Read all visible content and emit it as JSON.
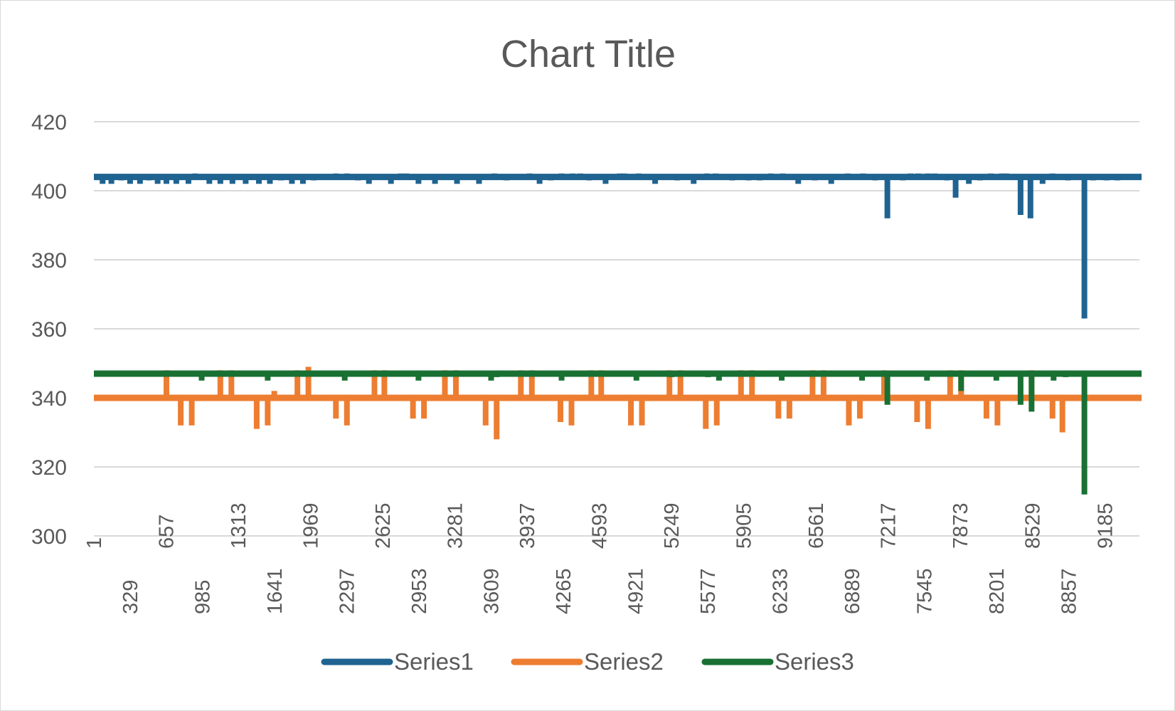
{
  "chart_data": {
    "type": "line",
    "title": "Chart Title",
    "xlabel": "",
    "ylabel": "",
    "ylim": [
      300,
      420
    ],
    "yticks": [
      300,
      320,
      340,
      360,
      380,
      400,
      420
    ],
    "x_range": [
      1,
      9500
    ],
    "xticks": [
      "1",
      "329",
      "657",
      "985",
      "1313",
      "1641",
      "1969",
      "2297",
      "2625",
      "2953",
      "3281",
      "3609",
      "3937",
      "4265",
      "4593",
      "4921",
      "5249",
      "5577",
      "5905",
      "6233",
      "6561",
      "6889",
      "7217",
      "7545",
      "7873",
      "8201",
      "8529",
      "8857",
      "9185"
    ],
    "grid": true,
    "legend": "bottom",
    "series": [
      {
        "name": "Series1",
        "color": "#1f6391",
        "baseline": 404,
        "spikes": [
          {
            "x": 80,
            "y": 402
          },
          {
            "x": 160,
            "y": 402
          },
          {
            "x": 250,
            "y": 403
          },
          {
            "x": 330,
            "y": 402
          },
          {
            "x": 420,
            "y": 402
          },
          {
            "x": 500,
            "y": 403
          },
          {
            "x": 580,
            "y": 402
          },
          {
            "x": 660,
            "y": 402
          },
          {
            "x": 750,
            "y": 402
          },
          {
            "x": 860,
            "y": 402
          },
          {
            "x": 920,
            "y": 405
          },
          {
            "x": 1050,
            "y": 402
          },
          {
            "x": 1150,
            "y": 402
          },
          {
            "x": 1260,
            "y": 402
          },
          {
            "x": 1380,
            "y": 402
          },
          {
            "x": 1500,
            "y": 402
          },
          {
            "x": 1600,
            "y": 402
          },
          {
            "x": 1700,
            "y": 403
          },
          {
            "x": 1800,
            "y": 402
          },
          {
            "x": 1900,
            "y": 402
          },
          {
            "x": 2000,
            "y": 403
          },
          {
            "x": 2200,
            "y": 405
          },
          {
            "x": 2300,
            "y": 405
          },
          {
            "x": 2400,
            "y": 403
          },
          {
            "x": 2500,
            "y": 402
          },
          {
            "x": 2700,
            "y": 402
          },
          {
            "x": 2790,
            "y": 405
          },
          {
            "x": 2840,
            "y": 405
          },
          {
            "x": 2950,
            "y": 402
          },
          {
            "x": 3100,
            "y": 402
          },
          {
            "x": 3300,
            "y": 402
          },
          {
            "x": 3500,
            "y": 402
          },
          {
            "x": 3640,
            "y": 405
          },
          {
            "x": 3750,
            "y": 403
          },
          {
            "x": 3960,
            "y": 405
          },
          {
            "x": 4050,
            "y": 402
          },
          {
            "x": 4150,
            "y": 403
          },
          {
            "x": 4250,
            "y": 405
          },
          {
            "x": 4350,
            "y": 405
          },
          {
            "x": 4420,
            "y": 405
          },
          {
            "x": 4500,
            "y": 403
          },
          {
            "x": 4650,
            "y": 402
          },
          {
            "x": 4780,
            "y": 405
          },
          {
            "x": 4820,
            "y": 405
          },
          {
            "x": 4950,
            "y": 405
          },
          {
            "x": 5100,
            "y": 402
          },
          {
            "x": 5300,
            "y": 403
          },
          {
            "x": 5450,
            "y": 402
          },
          {
            "x": 5570,
            "y": 405
          },
          {
            "x": 5650,
            "y": 405
          },
          {
            "x": 5800,
            "y": 403
          },
          {
            "x": 5950,
            "y": 403
          },
          {
            "x": 6050,
            "y": 403
          },
          {
            "x": 6150,
            "y": 405
          },
          {
            "x": 6260,
            "y": 405
          },
          {
            "x": 6400,
            "y": 402
          },
          {
            "x": 6550,
            "y": 403
          },
          {
            "x": 6700,
            "y": 402
          },
          {
            "x": 6850,
            "y": 405
          },
          {
            "x": 6990,
            "y": 405
          },
          {
            "x": 7100,
            "y": 403
          },
          {
            "x": 7210,
            "y": 392
          },
          {
            "x": 7350,
            "y": 403
          },
          {
            "x": 7420,
            "y": 405
          },
          {
            "x": 7490,
            "y": 405
          },
          {
            "x": 7580,
            "y": 405
          },
          {
            "x": 7640,
            "y": 405
          },
          {
            "x": 7750,
            "y": 403
          },
          {
            "x": 7830,
            "y": 398
          },
          {
            "x": 7950,
            "y": 402
          },
          {
            "x": 8050,
            "y": 403
          },
          {
            "x": 8150,
            "y": 405
          },
          {
            "x": 8250,
            "y": 405
          },
          {
            "x": 8290,
            "y": 405
          },
          {
            "x": 8420,
            "y": 393
          },
          {
            "x": 8510,
            "y": 392
          },
          {
            "x": 8620,
            "y": 402
          },
          {
            "x": 8710,
            "y": 405
          },
          {
            "x": 8850,
            "y": 403
          },
          {
            "x": 9000,
            "y": 363
          },
          {
            "x": 9080,
            "y": 403
          },
          {
            "x": 9200,
            "y": 403
          },
          {
            "x": 9300,
            "y": 403
          }
        ]
      },
      {
        "name": "Series2",
        "color": "#ed7d31",
        "baseline": 340,
        "spikes": [
          {
            "x": 660,
            "y": 348
          },
          {
            "x": 790,
            "y": 332
          },
          {
            "x": 890,
            "y": 332
          },
          {
            "x": 1150,
            "y": 348
          },
          {
            "x": 1250,
            "y": 348
          },
          {
            "x": 1480,
            "y": 331
          },
          {
            "x": 1580,
            "y": 332
          },
          {
            "x": 1640,
            "y": 342
          },
          {
            "x": 1850,
            "y": 348
          },
          {
            "x": 1950,
            "y": 349
          },
          {
            "x": 2200,
            "y": 334
          },
          {
            "x": 2300,
            "y": 332
          },
          {
            "x": 2550,
            "y": 348
          },
          {
            "x": 2640,
            "y": 348
          },
          {
            "x": 2900,
            "y": 334
          },
          {
            "x": 3000,
            "y": 334
          },
          {
            "x": 3190,
            "y": 348
          },
          {
            "x": 3290,
            "y": 348
          },
          {
            "x": 3560,
            "y": 332
          },
          {
            "x": 3660,
            "y": 328
          },
          {
            "x": 3880,
            "y": 348
          },
          {
            "x": 3980,
            "y": 348
          },
          {
            "x": 4240,
            "y": 333
          },
          {
            "x": 4340,
            "y": 332
          },
          {
            "x": 4520,
            "y": 348
          },
          {
            "x": 4610,
            "y": 348
          },
          {
            "x": 4880,
            "y": 332
          },
          {
            "x": 4980,
            "y": 332
          },
          {
            "x": 5230,
            "y": 348
          },
          {
            "x": 5330,
            "y": 348
          },
          {
            "x": 5560,
            "y": 331
          },
          {
            "x": 5660,
            "y": 332
          },
          {
            "x": 5880,
            "y": 348
          },
          {
            "x": 5980,
            "y": 348
          },
          {
            "x": 6220,
            "y": 334
          },
          {
            "x": 6320,
            "y": 334
          },
          {
            "x": 6530,
            "y": 348
          },
          {
            "x": 6630,
            "y": 348
          },
          {
            "x": 6860,
            "y": 332
          },
          {
            "x": 6960,
            "y": 334
          },
          {
            "x": 7180,
            "y": 348
          },
          {
            "x": 7480,
            "y": 333
          },
          {
            "x": 7580,
            "y": 331
          },
          {
            "x": 7780,
            "y": 348
          },
          {
            "x": 7880,
            "y": 348
          },
          {
            "x": 8110,
            "y": 334
          },
          {
            "x": 8210,
            "y": 332
          },
          {
            "x": 8520,
            "y": 348
          },
          {
            "x": 8710,
            "y": 334
          },
          {
            "x": 8800,
            "y": 330
          }
        ]
      },
      {
        "name": "Series3",
        "color": "#197033",
        "baseline": 347,
        "spikes": [
          {
            "x": 980,
            "y": 345
          },
          {
            "x": 1580,
            "y": 345
          },
          {
            "x": 2280,
            "y": 345
          },
          {
            "x": 2950,
            "y": 345
          },
          {
            "x": 3610,
            "y": 345
          },
          {
            "x": 3660,
            "y": 346
          },
          {
            "x": 4250,
            "y": 345
          },
          {
            "x": 4930,
            "y": 345
          },
          {
            "x": 5250,
            "y": 346
          },
          {
            "x": 5580,
            "y": 346
          },
          {
            "x": 5680,
            "y": 345
          },
          {
            "x": 6250,
            "y": 345
          },
          {
            "x": 6980,
            "y": 345
          },
          {
            "x": 7210,
            "y": 338
          },
          {
            "x": 7570,
            "y": 345
          },
          {
            "x": 7880,
            "y": 342
          },
          {
            "x": 8200,
            "y": 345
          },
          {
            "x": 8420,
            "y": 338
          },
          {
            "x": 8520,
            "y": 336
          },
          {
            "x": 8720,
            "y": 345
          },
          {
            "x": 8830,
            "y": 346
          },
          {
            "x": 9000,
            "y": 312
          }
        ]
      }
    ]
  }
}
